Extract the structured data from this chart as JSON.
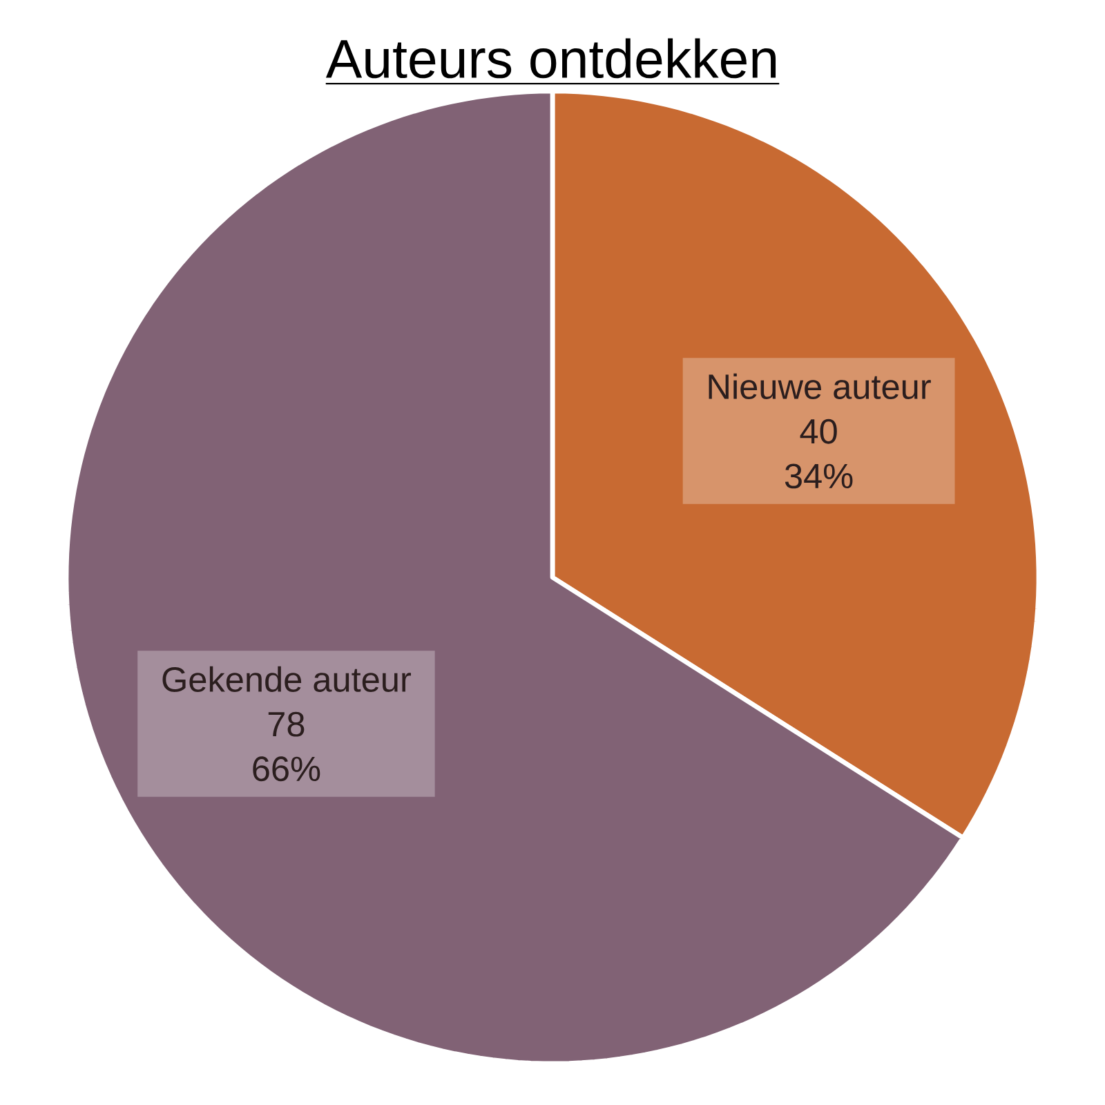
{
  "chart_data": {
    "type": "pie",
    "title": "Auteurs ontdekken",
    "categories": [
      "Nieuwe auteur",
      "Gekende auteur"
    ],
    "values": [
      34,
      66
    ],
    "value_labels": [
      "34%",
      "66%"
    ],
    "annotations": [
      "40",
      "78"
    ],
    "colors": [
      "#c86a32",
      "#816275"
    ]
  }
}
